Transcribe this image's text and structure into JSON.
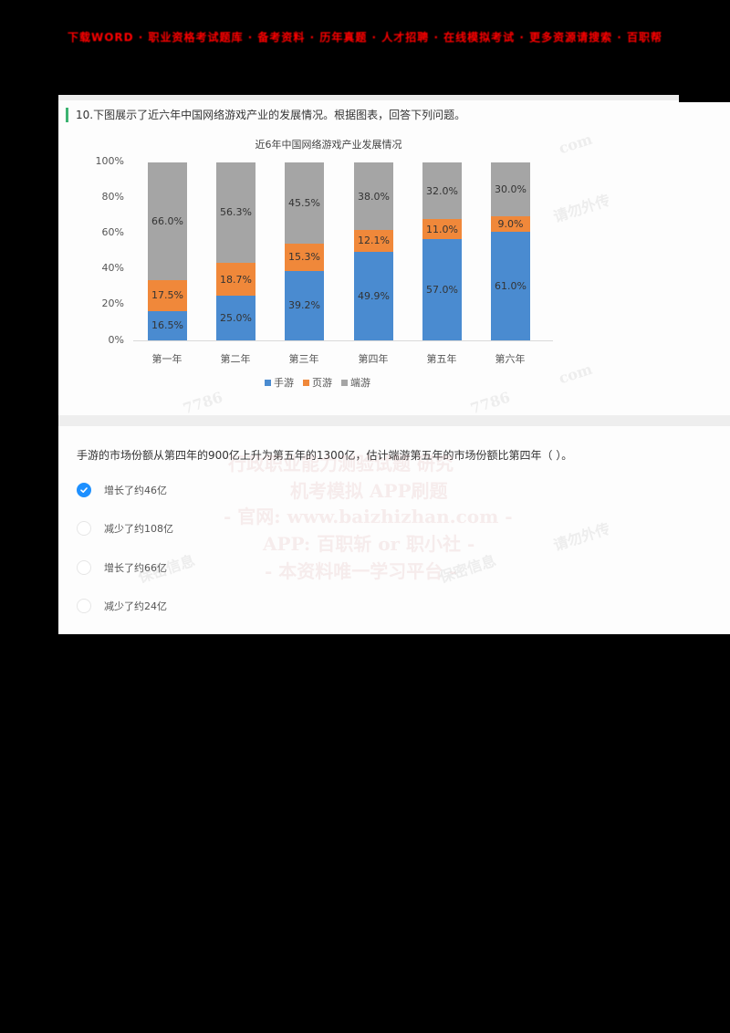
{
  "banner": {
    "text": "下载WORD · 职业资格考试题库 · 备考资料 · 历年真题 · 人才招聘 · 在线模拟考试 · 更多资源请搜索 · 百职帮"
  },
  "question_card": {
    "title": "10.下图展示了近六年中国网络游戏产业的发展情况。根据图表，回答下列问题。",
    "accent_color": "#3cb371",
    "question_text": "手游的市场份额从第四年的900亿上升为第五年的1300亿，估计端游第五年的市场份额比第四年（ ）。",
    "options": [
      {
        "label": "增长了约46亿",
        "selected": true
      },
      {
        "label": "减少了约108亿",
        "selected": false
      },
      {
        "label": "增长了约66亿",
        "selected": false
      },
      {
        "label": "减少了约24亿",
        "selected": false
      }
    ],
    "selected_color": "#1e90ff"
  },
  "watermarks": [
    "行政职业能力测验试题 研究",
    "机考模拟 APP刷题",
    "- 官网: www.baizhizhan.com -",
    "APP: 百职斩 or 职小社 -",
    "- 本资料唯一学习平台 -",
    "请勿外传",
    "保密信息",
    "com",
    "7786"
  ],
  "chart_data": {
    "type": "bar",
    "stacked": true,
    "title": "近6年中国网络游戏产业发展情况",
    "categories": [
      "第一年",
      "第二年",
      "第三年",
      "第四年",
      "第五年",
      "第六年"
    ],
    "series": [
      {
        "name": "手游",
        "color": "#4a8bd0",
        "values": [
          16.5,
          25.0,
          39.2,
          49.9,
          57.0,
          61.0
        ]
      },
      {
        "name": "页游",
        "color": "#f0883a",
        "values": [
          17.5,
          18.7,
          15.3,
          12.1,
          11.0,
          9.0
        ]
      },
      {
        "name": "端游",
        "color": "#a5a5a5",
        "values": [
          66.0,
          56.3,
          45.5,
          38.0,
          32.0,
          30.0
        ]
      }
    ],
    "data_labels": [
      [
        "16.5%",
        "25.0%",
        "39.2%",
        "49.9%",
        "57.0%",
        "61.0%"
      ],
      [
        "17.5%",
        "18.7%",
        "15.3%",
        "12.1%",
        "11.0%",
        "9.0%"
      ],
      [
        "66.0%",
        "56.3%",
        "45.5%",
        "38.0%",
        "32.0%",
        "30.0%"
      ]
    ],
    "y_ticks": [
      "100%",
      "80%",
      "60%",
      "40%",
      "20%",
      "0%"
    ],
    "xlabel": "",
    "ylabel": "",
    "ylim": [
      0,
      100
    ],
    "grid": false,
    "legend_position": "bottom"
  }
}
